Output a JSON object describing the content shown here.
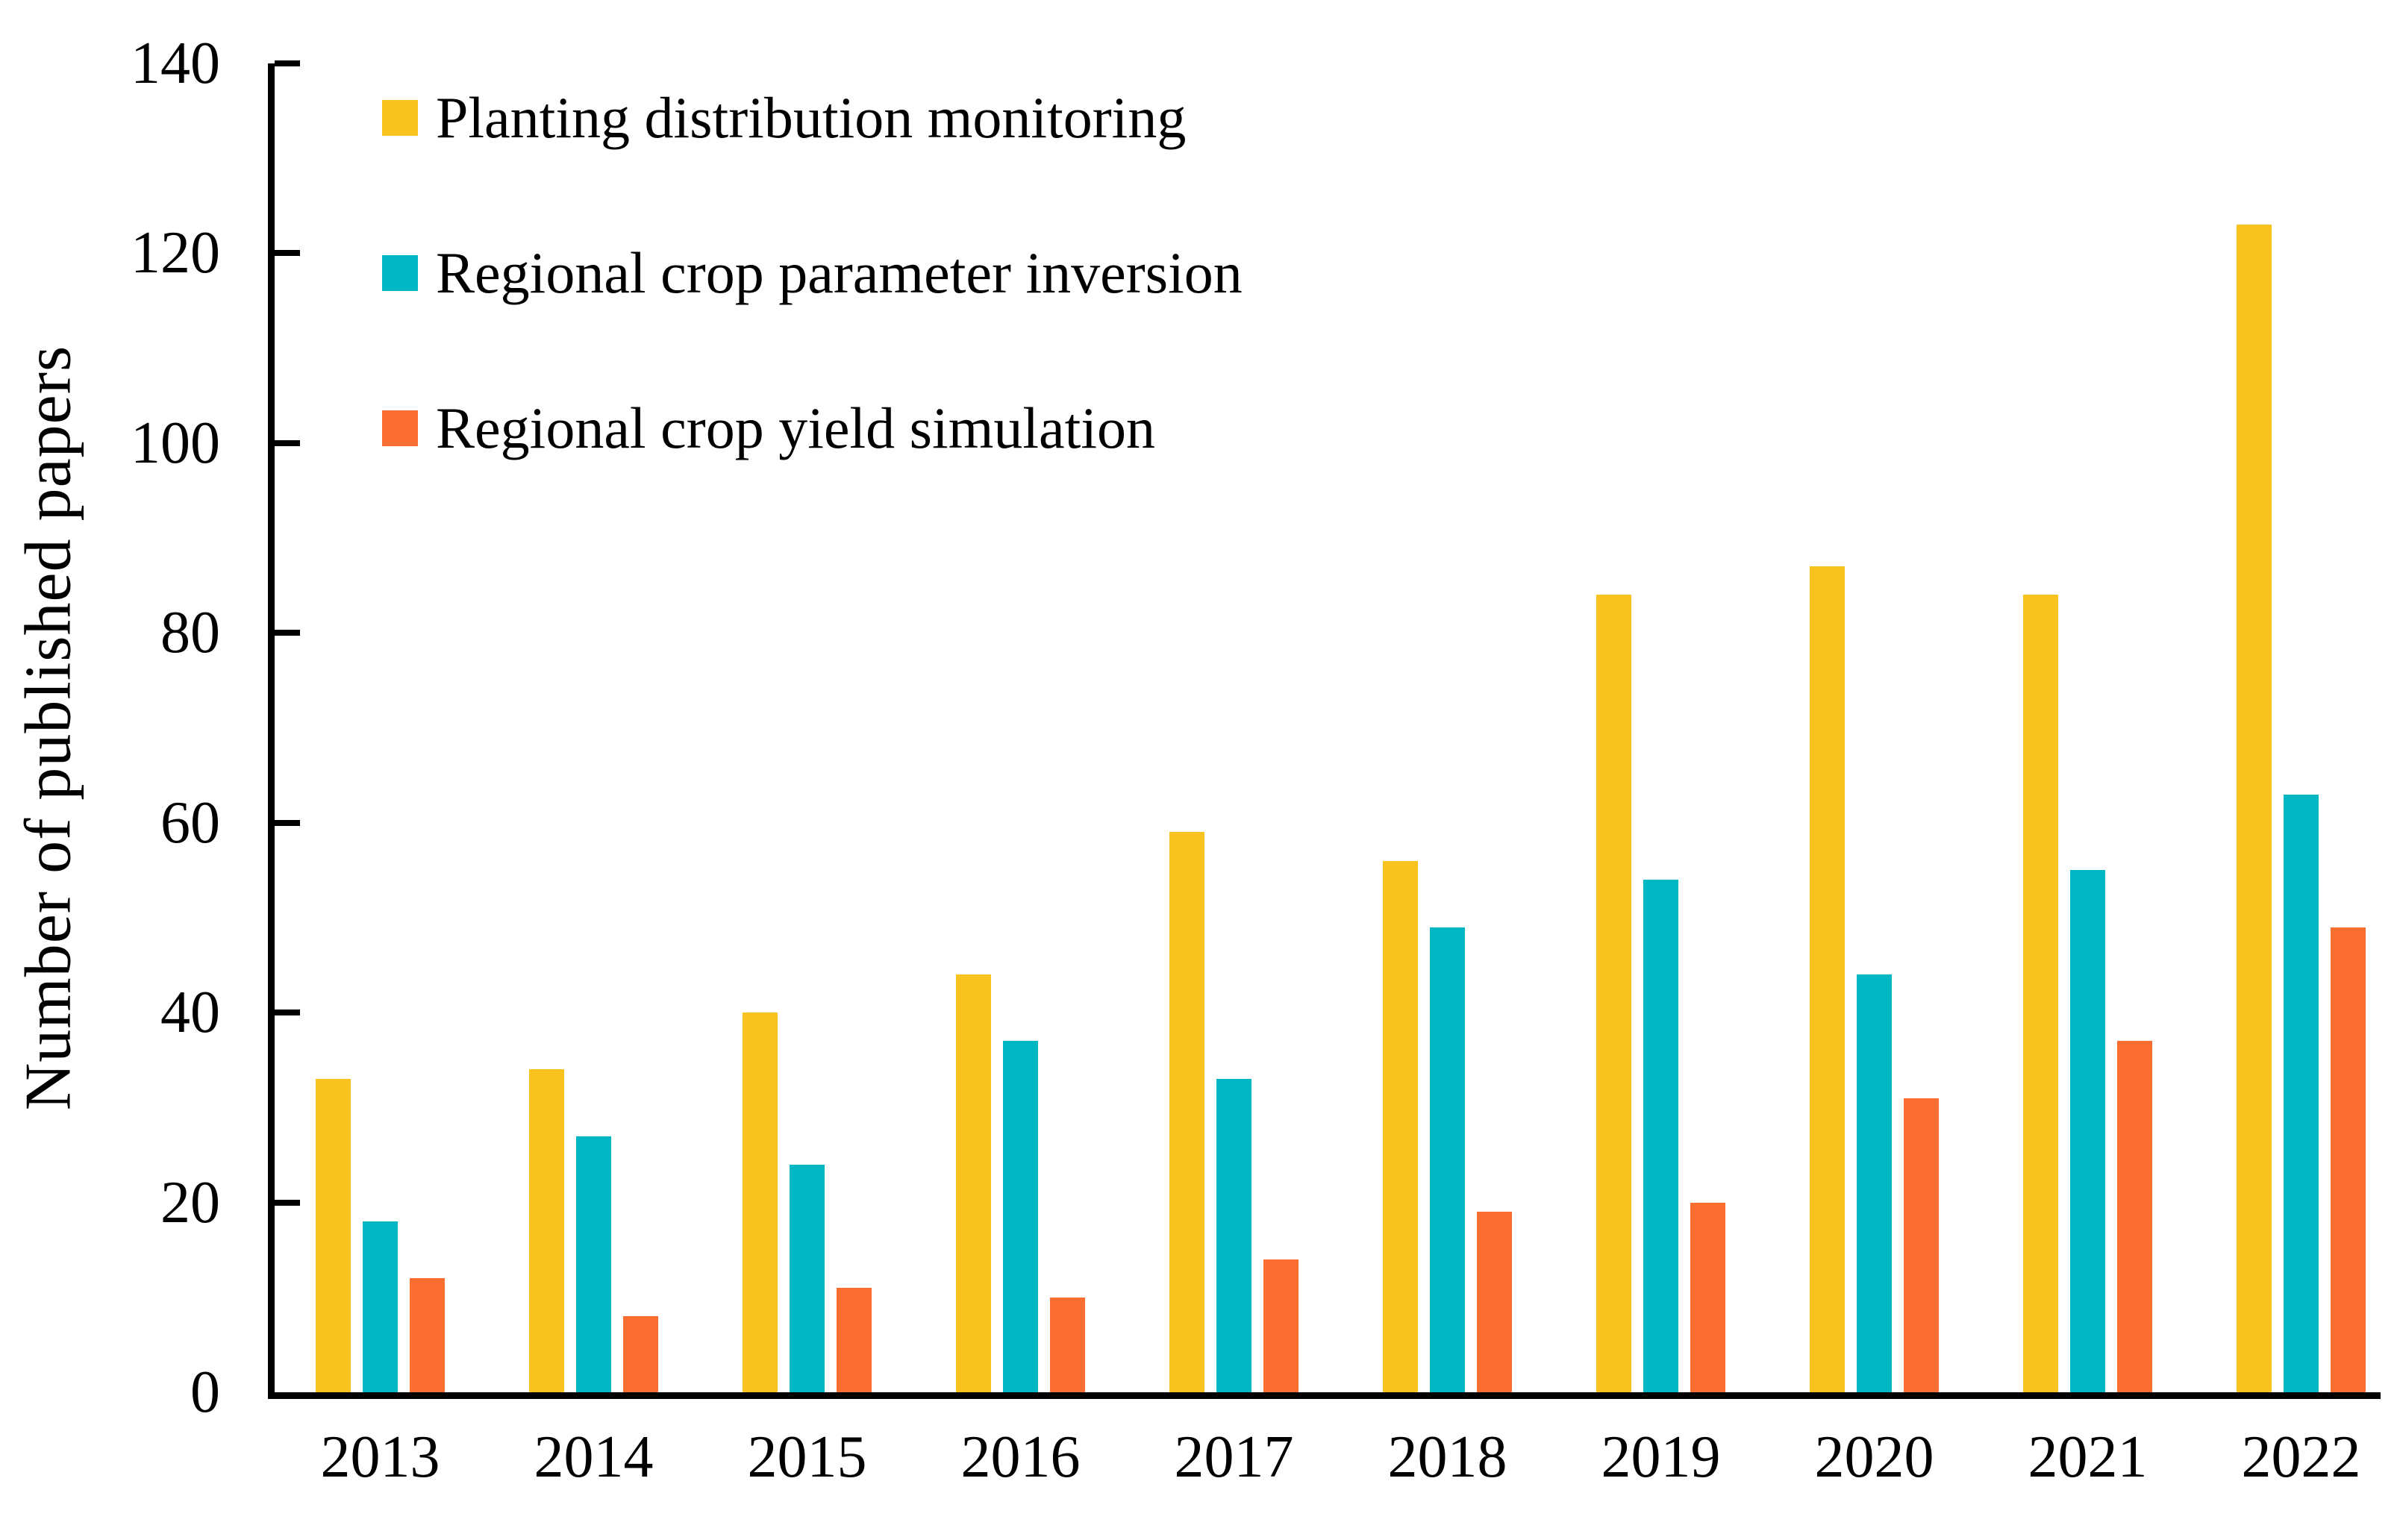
{
  "chart_data": {
    "type": "bar",
    "title": "",
    "categories": [
      "2013",
      "2014",
      "2015",
      "2016",
      "2017",
      "2018",
      "2019",
      "2020",
      "2021",
      "2022"
    ],
    "series": [
      {
        "name": "Planting distribution monitoring",
        "color": "#F9C31F",
        "values": [
          33,
          34,
          40,
          44,
          59,
          56,
          84,
          87,
          84,
          123
        ]
      },
      {
        "name": "Regional crop parameter inversion",
        "color": "#00B7C3",
        "values": [
          18,
          27,
          24,
          37,
          33,
          49,
          54,
          44,
          55,
          63
        ]
      },
      {
        "name": "Regional crop yield simulation",
        "color": "#FA6E32",
        "values": [
          12,
          8,
          11,
          10,
          14,
          19,
          20,
          31,
          37,
          49
        ]
      }
    ],
    "xlabel": "",
    "ylabel": "Number of published papers",
    "ylim": [
      0,
      140
    ],
    "yticks": [
      0,
      20,
      40,
      60,
      80,
      100,
      120,
      140
    ],
    "grid": false,
    "legend_position": "top-left",
    "axis_color": "#000000",
    "background_color": "#ffffff"
  }
}
